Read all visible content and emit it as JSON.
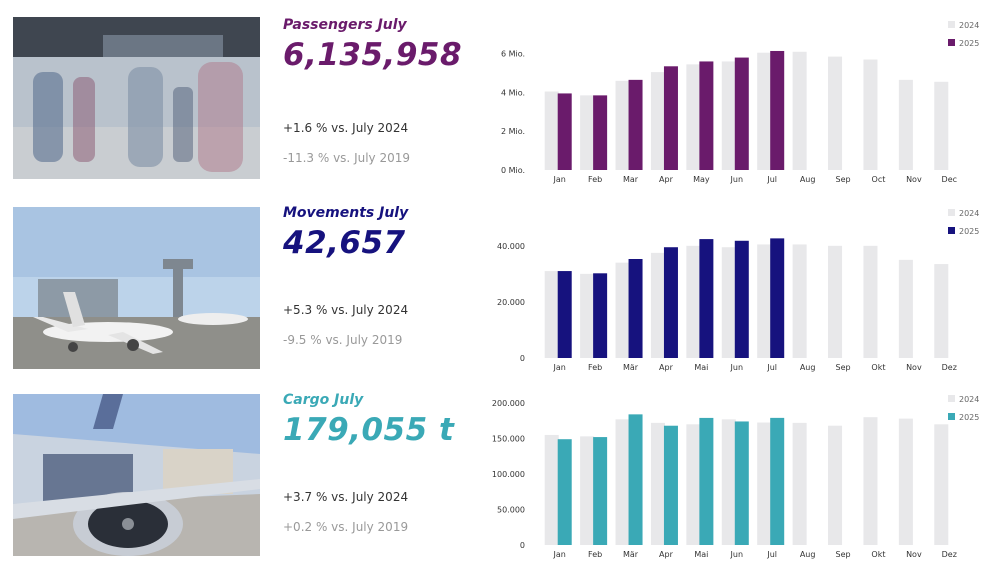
{
  "colors": {
    "passengers": "#6a1b6b",
    "movements": "#16127e",
    "cargo": "#3aa9b6",
    "prior_year_bar": "#e8e8ea"
  },
  "passengers": {
    "title": "Passengers July",
    "value": "6,135,958",
    "vs_2024": "+1.6 % vs. July 2024",
    "vs_2019": "-11.3 % vs. July 2019"
  },
  "movements": {
    "title": "Movements July",
    "value": "42,657",
    "vs_2024": "+5.3 % vs. July 2024",
    "vs_2019": "-9.5 % vs. July 2019"
  },
  "cargo": {
    "title": "Cargo July",
    "value": "179,055 t",
    "vs_2024": "+3.7 % vs. July 2024",
    "vs_2019": "+0.2 % vs. July 2019"
  },
  "chart_data": [
    {
      "type": "bar",
      "categories": [
        "Jan",
        "Feb",
        "Mar",
        "Apr",
        "May",
        "Jun",
        "Jul",
        "Aug",
        "Sep",
        "Oct",
        "Nov",
        "Dec"
      ],
      "series": [
        {
          "name": "2024",
          "values": [
            4.05,
            3.85,
            4.6,
            5.05,
            5.45,
            5.6,
            6.05,
            6.1,
            5.85,
            5.7,
            4.65,
            4.55
          ]
        },
        {
          "name": "2025",
          "values": [
            3.95,
            3.85,
            4.65,
            5.35,
            5.6,
            5.8,
            6.14,
            null,
            null,
            null,
            null,
            null
          ]
        }
      ],
      "yticks": [
        0,
        2,
        4,
        6
      ],
      "ytick_labels": [
        "0 Mio.",
        "2 Mio.",
        "4 Mio.",
        "6 Mio."
      ],
      "ylim": [
        0,
        6.5
      ],
      "legend_position": "top-right"
    },
    {
      "type": "bar",
      "categories": [
        "Jan",
        "Feb",
        "Mär",
        "Apr",
        "Mai",
        "Jun",
        "Jul",
        "Aug",
        "Sep",
        "Okt",
        "Nov",
        "Dez"
      ],
      "series": [
        {
          "name": "2024",
          "values": [
            31000,
            30000,
            34000,
            37500,
            40000,
            39500,
            40500,
            40500,
            40000,
            40000,
            35000,
            33500
          ]
        },
        {
          "name": "2025",
          "values": [
            31000,
            30200,
            35300,
            39500,
            42400,
            41800,
            42657,
            null,
            null,
            null,
            null,
            null
          ]
        }
      ],
      "yticks": [
        0,
        20000,
        40000
      ],
      "ytick_labels": [
        "0",
        "20.000",
        "40.000"
      ],
      "ylim": [
        0,
        46000
      ],
      "legend_position": "top-right"
    },
    {
      "type": "bar",
      "categories": [
        "Jan",
        "Feb",
        "Mär",
        "Apr",
        "Mai",
        "Jun",
        "Jul",
        "Aug",
        "Sep",
        "Okt",
        "Nov",
        "Dez"
      ],
      "series": [
        {
          "name": "2024",
          "values": [
            155000,
            153000,
            177000,
            172000,
            170000,
            177000,
            172500,
            172000,
            168000,
            180000,
            178000,
            170000
          ]
        },
        {
          "name": "2025",
          "values": [
            149000,
            152000,
            184000,
            168000,
            179000,
            174000,
            179055,
            null,
            null,
            null,
            null,
            null
          ]
        }
      ],
      "yticks": [
        0,
        50000,
        100000,
        150000,
        200000
      ],
      "ytick_labels": [
        "0",
        "50.000",
        "100.000",
        "150.000",
        "200.000"
      ],
      "ylim": [
        0,
        200000
      ],
      "legend_position": "top-right"
    }
  ]
}
